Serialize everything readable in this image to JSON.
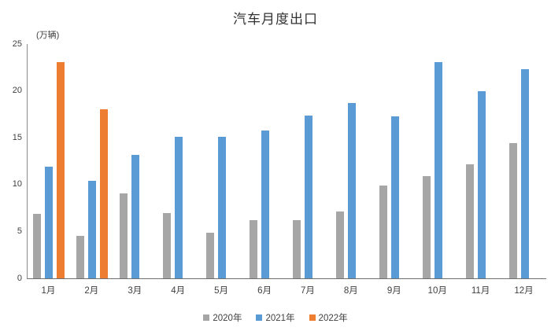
{
  "chart_data": {
    "type": "bar",
    "title": "汽车月度出口",
    "unit_label": "(万辆)",
    "categories": [
      "1月",
      "2月",
      "3月",
      "4月",
      "5月",
      "6月",
      "7月",
      "8月",
      "9月",
      "10月",
      "11月",
      "12月"
    ],
    "series": [
      {
        "name": "2020年",
        "color": "#A6A6A6",
        "values": [
          6.9,
          4.5,
          9.1,
          7.0,
          4.9,
          6.2,
          6.2,
          7.1,
          9.9,
          10.9,
          12.2,
          14.4
        ]
      },
      {
        "name": "2021年",
        "color": "#5B9BD5",
        "values": [
          11.9,
          10.4,
          13.2,
          15.1,
          15.1,
          15.8,
          17.4,
          18.7,
          17.3,
          23.1,
          20.0,
          22.3
        ]
      },
      {
        "name": "2022年",
        "color": "#ED7D31",
        "values": [
          23.1,
          18.0,
          null,
          null,
          null,
          null,
          null,
          null,
          null,
          null,
          null,
          null
        ]
      }
    ],
    "ylim": [
      0,
      25
    ],
    "yticks": [
      0,
      5,
      10,
      15,
      20,
      25
    ],
    "grid": false,
    "legend_position": "bottom",
    "axis_color": "#898989",
    "background_color": "#FFFFFF"
  }
}
